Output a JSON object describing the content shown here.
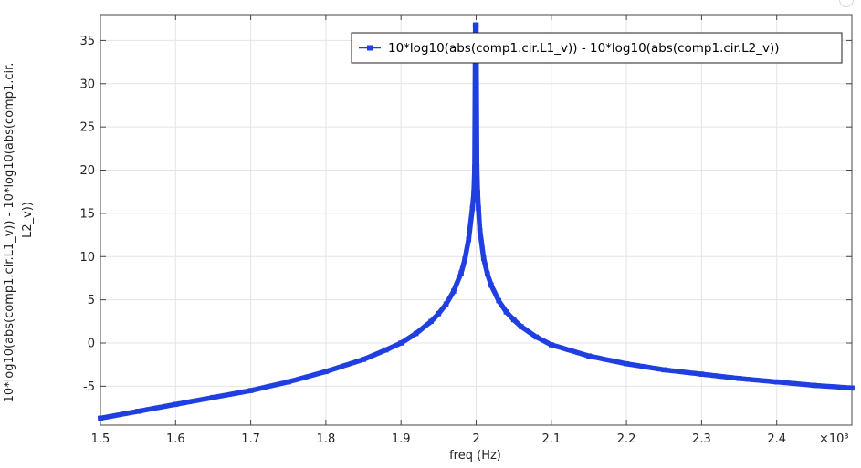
{
  "chart_data": {
    "type": "line",
    "xlabel": "freq (Hz)",
    "ylabel_lines": [
      "10*log10(abs(comp1.cir.L1_v)) - 10*log10(abs(comp1.cir.",
      "L2_v))"
    ],
    "x_multiplier_label": "×10³",
    "xlim": [
      1.5,
      2.5
    ],
    "ylim": [
      -9.5,
      38
    ],
    "x_ticks": [
      1.5,
      1.6,
      1.7,
      1.8,
      1.9,
      2,
      2.1,
      2.2,
      2.3,
      2.4
    ],
    "x_tick_labels": [
      "1.5",
      "1.6",
      "1.7",
      "1.8",
      "1.9",
      "2",
      "2.1",
      "2.2",
      "2.3",
      "2.4"
    ],
    "y_ticks": [
      -5,
      0,
      5,
      10,
      15,
      20,
      25,
      30,
      35
    ],
    "y_tick_labels": [
      "-5",
      "0",
      "5",
      "10",
      "15",
      "20",
      "25",
      "30",
      "35"
    ],
    "grid": true,
    "legend_position": "top-right",
    "series": [
      {
        "name": "10*log10(abs(comp1.cir.L1_v)) - 10*log10(abs(comp1.cir.L2_v))",
        "color": "#1f3fe0",
        "marker": "square",
        "x": [
          1.5,
          1.55,
          1.6,
          1.65,
          1.7,
          1.75,
          1.8,
          1.85,
          1.88,
          1.9,
          1.92,
          1.94,
          1.95,
          1.96,
          1.97,
          1.98,
          1.985,
          1.99,
          1.995,
          1.997,
          1.998,
          1.999,
          2.0,
          2.001,
          2.002,
          2.003,
          2.005,
          2.01,
          2.015,
          2.02,
          2.03,
          2.04,
          2.05,
          2.06,
          2.08,
          2.1,
          2.15,
          2.2,
          2.25,
          2.3,
          2.35,
          2.4,
          2.45,
          2.5
        ],
        "y": [
          -8.7,
          -7.9,
          -7.1,
          -6.3,
          -5.5,
          -4.5,
          -3.3,
          -1.9,
          -0.8,
          0,
          1.1,
          2.5,
          3.4,
          4.5,
          6,
          8.1,
          9.7,
          12,
          15.6,
          17.4,
          20.3,
          36.8,
          36.8,
          20.4,
          17.4,
          15.6,
          13,
          9.8,
          8,
          6.7,
          4.9,
          3.6,
          2.7,
          1.9,
          0.7,
          -0.2,
          -1.5,
          -2.4,
          -3.1,
          -3.6,
          -4.1,
          -4.5,
          -4.9,
          -5.2
        ]
      }
    ]
  }
}
